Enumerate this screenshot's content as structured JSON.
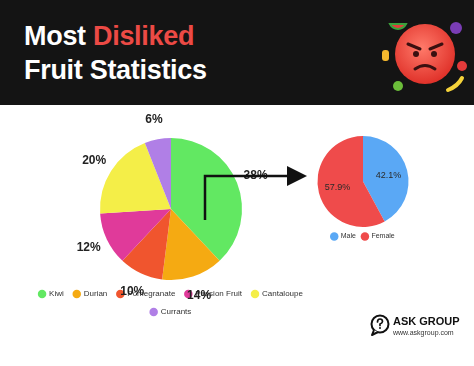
{
  "header": {
    "lines": [
      "Most Disliked",
      "Fruit Statistics"
    ],
    "highlight": "Disliked"
  },
  "chart_data": [
    {
      "type": "pie",
      "categories": [
        "Kiwi",
        "Durian",
        "Pomegranate",
        "Passion Fruit",
        "Cantaloupe",
        "Currants"
      ],
      "values": [
        38,
        14,
        10,
        12,
        20,
        6
      ],
      "value_labels": [
        "38%",
        "14%",
        "10%",
        "12%",
        "20%",
        "6%"
      ],
      "colors": [
        "#62e862",
        "#f5aa12",
        "#f0552e",
        "#e03a9a",
        "#f4ee48",
        "#b07fe6"
      ],
      "data_labels": true,
      "legend": "bottom"
    },
    {
      "type": "pie",
      "categories": [
        "Male",
        "Female"
      ],
      "values": [
        42.1,
        57.9
      ],
      "value_labels": [
        "42.1%",
        "57.9%"
      ],
      "colors": [
        "#5aa8f5",
        "#ef4b4b"
      ],
      "data_labels": true,
      "legend": "bottom"
    }
  ],
  "brand": {
    "name": "ASK GROUP",
    "url": "www.askgroup.com"
  }
}
